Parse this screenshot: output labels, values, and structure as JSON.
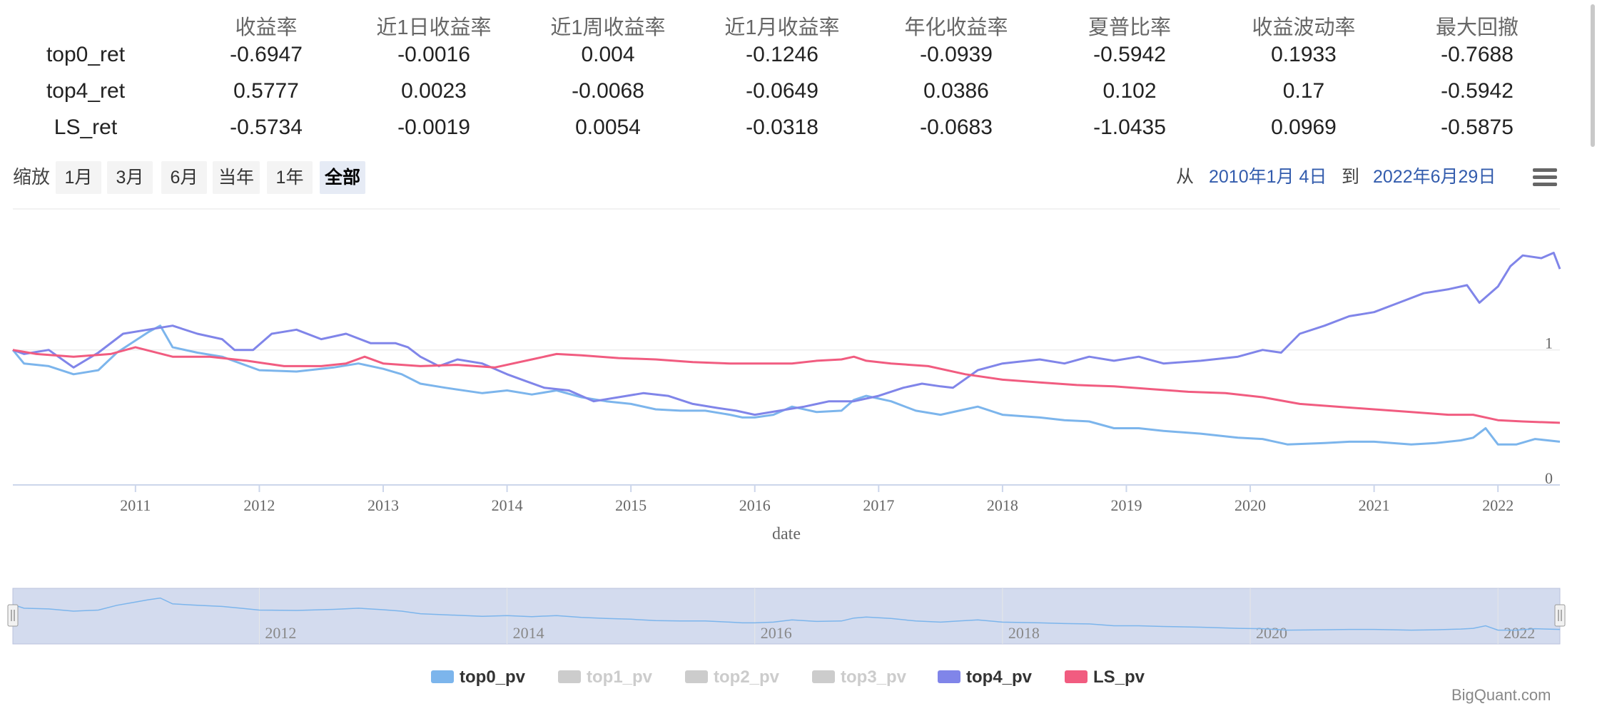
{
  "stats": {
    "columns": [
      "收益率",
      "近1日收益率",
      "近1周收益率",
      "近1月收益率",
      "年化收益率",
      "夏普比率",
      "收益波动率",
      "最大回撤"
    ],
    "rows": [
      {
        "label": "top0_ret",
        "values": [
          "-0.6947",
          "-0.0016",
          "0.004",
          "-0.1246",
          "-0.0939",
          "-0.5942",
          "0.1933",
          "-0.7688"
        ]
      },
      {
        "label": "top4_ret",
        "values": [
          "0.5777",
          "0.0023",
          "-0.0068",
          "-0.0649",
          "0.0386",
          "0.102",
          "0.17",
          "-0.5942"
        ]
      },
      {
        "label": "LS_ret",
        "values": [
          "-0.5734",
          "-0.0019",
          "0.0054",
          "-0.0318",
          "-0.0683",
          "-1.0435",
          "0.0969",
          "-0.5875"
        ]
      }
    ]
  },
  "range_selector": {
    "zoom_label": "缩放",
    "buttons": [
      "1月",
      "3月",
      "6月",
      "当年",
      "1年",
      "全部"
    ],
    "active": "全部",
    "from_label": "从",
    "from_date": "2010年1月 4日",
    "to_label": "到",
    "to_date": "2022年6月29日"
  },
  "chart_data": {
    "type": "line",
    "xlabel": "date",
    "x_range": [
      2010.01,
      2022.5
    ],
    "ylim": [
      0,
      2.05
    ],
    "yticks": [
      0,
      1
    ],
    "xticks": [
      "2011",
      "2012",
      "2013",
      "2014",
      "2015",
      "2016",
      "2017",
      "2018",
      "2019",
      "2020",
      "2021",
      "2022"
    ],
    "navigator_ticks": [
      "2012",
      "2014",
      "2016",
      "2018",
      "2020",
      "2022"
    ],
    "grid": "horizontal",
    "legend_position": "bottom-center",
    "series": [
      {
        "name": "top0_pv",
        "color": "#7cb5ec",
        "visible": true,
        "x": [
          2010.01,
          2010.1,
          2010.3,
          2010.5,
          2010.7,
          2010.85,
          2011.0,
          2011.1,
          2011.2,
          2011.3,
          2011.5,
          2011.7,
          2011.85,
          2012.0,
          2012.3,
          2012.6,
          2012.8,
          2013.0,
          2013.15,
          2013.3,
          2013.5,
          2013.8,
          2014.0,
          2014.2,
          2014.4,
          2014.6,
          2014.8,
          2015.0,
          2015.2,
          2015.4,
          2015.6,
          2015.8,
          2015.9,
          2016.0,
          2016.15,
          2016.3,
          2016.5,
          2016.7,
          2016.8,
          2016.9,
          2017.1,
          2017.3,
          2017.5,
          2017.65,
          2017.8,
          2018.0,
          2018.3,
          2018.5,
          2018.7,
          2018.9,
          2019.1,
          2019.3,
          2019.6,
          2019.9,
          2020.1,
          2020.3,
          2020.6,
          2020.8,
          2021.0,
          2021.3,
          2021.5,
          2021.7,
          2021.8,
          2021.9,
          2022.0,
          2022.15,
          2022.3,
          2022.5
        ],
        "y": [
          1.0,
          0.9,
          0.88,
          0.82,
          0.85,
          0.98,
          1.07,
          1.13,
          1.18,
          1.02,
          0.98,
          0.95,
          0.9,
          0.85,
          0.84,
          0.87,
          0.9,
          0.86,
          0.82,
          0.75,
          0.72,
          0.68,
          0.7,
          0.67,
          0.7,
          0.65,
          0.62,
          0.6,
          0.56,
          0.55,
          0.55,
          0.52,
          0.5,
          0.5,
          0.52,
          0.58,
          0.54,
          0.55,
          0.63,
          0.66,
          0.62,
          0.55,
          0.52,
          0.55,
          0.58,
          0.52,
          0.5,
          0.48,
          0.47,
          0.42,
          0.42,
          0.4,
          0.38,
          0.35,
          0.34,
          0.3,
          0.31,
          0.32,
          0.32,
          0.3,
          0.31,
          0.33,
          0.35,
          0.42,
          0.3,
          0.3,
          0.34,
          0.32
        ]
      },
      {
        "name": "top1_pv",
        "color": "#cccccc",
        "visible": false,
        "x": [],
        "y": []
      },
      {
        "name": "top2_pv",
        "color": "#cccccc",
        "visible": false,
        "x": [],
        "y": []
      },
      {
        "name": "top3_pv",
        "color": "#cccccc",
        "visible": false,
        "x": [],
        "y": []
      },
      {
        "name": "top4_pv",
        "color": "#8085e9",
        "visible": true,
        "x": [
          2010.01,
          2010.1,
          2010.3,
          2010.5,
          2010.7,
          2010.9,
          2011.1,
          2011.3,
          2011.5,
          2011.7,
          2011.8,
          2011.95,
          2012.1,
          2012.3,
          2012.5,
          2012.7,
          2012.9,
          2013.1,
          2013.2,
          2013.3,
          2013.45,
          2013.6,
          2013.8,
          2014.0,
          2014.15,
          2014.3,
          2014.5,
          2014.7,
          2014.9,
          2015.1,
          2015.3,
          2015.5,
          2015.7,
          2015.85,
          2016.0,
          2016.2,
          2016.4,
          2016.6,
          2016.8,
          2017.0,
          2017.2,
          2017.35,
          2017.5,
          2017.6,
          2017.8,
          2018.0,
          2018.3,
          2018.5,
          2018.7,
          2018.9,
          2019.1,
          2019.3,
          2019.6,
          2019.9,
          2020.1,
          2020.25,
          2020.4,
          2020.6,
          2020.8,
          2021.0,
          2021.2,
          2021.4,
          2021.6,
          2021.75,
          2021.85,
          2022.0,
          2022.1,
          2022.2,
          2022.35,
          2022.45,
          2022.5
        ],
        "y": [
          1.0,
          0.97,
          1.0,
          0.87,
          0.98,
          1.12,
          1.15,
          1.18,
          1.12,
          1.08,
          1.0,
          1.0,
          1.12,
          1.15,
          1.08,
          1.12,
          1.05,
          1.05,
          1.02,
          0.95,
          0.88,
          0.93,
          0.9,
          0.82,
          0.77,
          0.72,
          0.7,
          0.62,
          0.65,
          0.68,
          0.66,
          0.6,
          0.57,
          0.55,
          0.52,
          0.55,
          0.58,
          0.62,
          0.62,
          0.66,
          0.72,
          0.75,
          0.73,
          0.72,
          0.85,
          0.9,
          0.93,
          0.9,
          0.95,
          0.92,
          0.95,
          0.9,
          0.92,
          0.95,
          1.0,
          0.98,
          1.12,
          1.18,
          1.25,
          1.28,
          1.35,
          1.42,
          1.45,
          1.48,
          1.35,
          1.47,
          1.62,
          1.7,
          1.68,
          1.72,
          1.6
        ]
      },
      {
        "name": "LS_pv",
        "color": "#f15c80",
        "visible": true,
        "x": [
          2010.01,
          2010.2,
          2010.5,
          2010.8,
          2011.0,
          2011.3,
          2011.6,
          2011.9,
          2012.2,
          2012.5,
          2012.7,
          2012.85,
          2013.0,
          2013.3,
          2013.6,
          2013.9,
          2014.2,
          2014.4,
          2014.6,
          2014.9,
          2015.2,
          2015.5,
          2015.8,
          2016.0,
          2016.3,
          2016.5,
          2016.7,
          2016.8,
          2016.9,
          2017.1,
          2017.4,
          2017.7,
          2018.0,
          2018.3,
          2018.6,
          2018.9,
          2019.2,
          2019.5,
          2019.8,
          2020.1,
          2020.4,
          2020.7,
          2021.0,
          2021.3,
          2021.6,
          2021.8,
          2022.0,
          2022.2,
          2022.5
        ],
        "y": [
          1.0,
          0.97,
          0.95,
          0.97,
          1.02,
          0.95,
          0.95,
          0.92,
          0.88,
          0.88,
          0.9,
          0.95,
          0.9,
          0.88,
          0.89,
          0.87,
          0.93,
          0.97,
          0.96,
          0.94,
          0.93,
          0.91,
          0.9,
          0.9,
          0.9,
          0.92,
          0.93,
          0.95,
          0.92,
          0.9,
          0.88,
          0.82,
          0.78,
          0.76,
          0.74,
          0.73,
          0.71,
          0.69,
          0.68,
          0.65,
          0.6,
          0.58,
          0.56,
          0.54,
          0.52,
          0.52,
          0.48,
          0.47,
          0.46
        ]
      }
    ]
  },
  "credits": "BigQuant.com"
}
